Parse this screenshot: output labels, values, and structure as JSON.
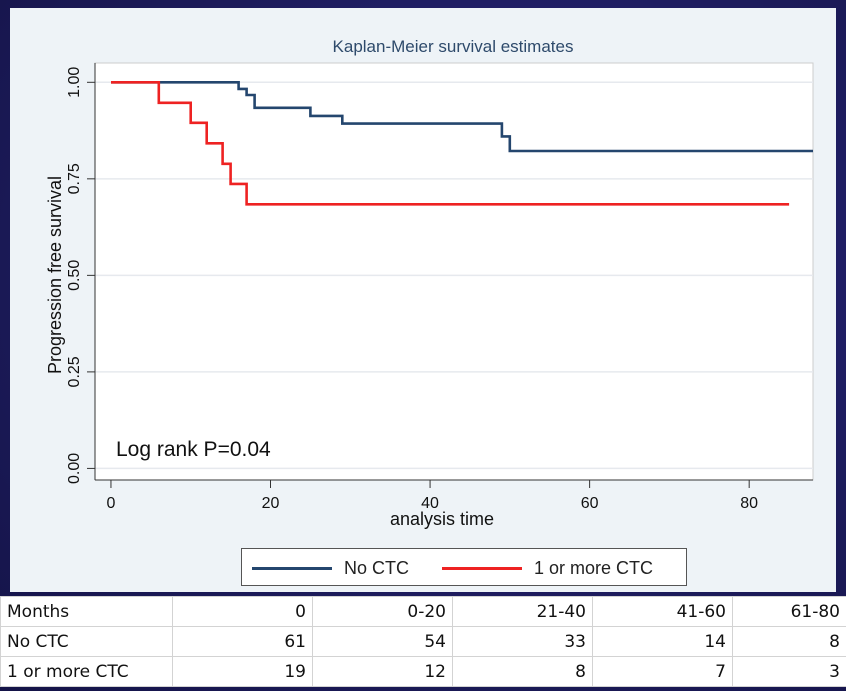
{
  "chart_data": {
    "type": "line",
    "title": "Kaplan-Meier survival estimates",
    "xlabel": "analysis time",
    "ylabel": "Progression free survival",
    "xlim": [
      -2,
      88
    ],
    "ylim": [
      -0.03,
      1.05
    ],
    "xticks": [
      0,
      20,
      40,
      60,
      80
    ],
    "yticks": [
      "0.00",
      "0.25",
      "0.50",
      "0.75",
      "1.00"
    ],
    "grid": true,
    "legend_position": "bottom",
    "annotation": "Log rank P=0.04",
    "series": [
      {
        "name": "No CTC",
        "color": "#24466e",
        "step_points": [
          [
            0,
            1.0
          ],
          [
            16,
            1.0
          ],
          [
            16,
            0.983
          ],
          [
            17,
            0.983
          ],
          [
            17,
            0.967
          ],
          [
            18,
            0.967
          ],
          [
            18,
            0.934
          ],
          [
            25,
            0.934
          ],
          [
            25,
            0.913
          ],
          [
            29,
            0.913
          ],
          [
            29,
            0.893
          ],
          [
            49,
            0.893
          ],
          [
            49,
            0.86
          ],
          [
            50,
            0.86
          ],
          [
            50,
            0.822
          ],
          [
            88,
            0.822
          ]
        ]
      },
      {
        "name": "1 or more CTC",
        "color": "#ee2222",
        "step_points": [
          [
            0,
            1.0
          ],
          [
            6,
            1.0
          ],
          [
            6,
            0.947
          ],
          [
            10,
            0.947
          ],
          [
            10,
            0.895
          ],
          [
            12,
            0.895
          ],
          [
            12,
            0.842
          ],
          [
            14,
            0.842
          ],
          [
            14,
            0.789
          ],
          [
            15,
            0.789
          ],
          [
            15,
            0.737
          ],
          [
            17,
            0.737
          ],
          [
            17,
            0.684
          ],
          [
            85,
            0.684
          ]
        ]
      }
    ]
  },
  "risk_table": {
    "header": [
      "Months",
      "0",
      "0-20",
      "21-40",
      "41-60",
      "61-80"
    ],
    "rows": [
      [
        "No CTC",
        "61",
        "54",
        "33",
        "14",
        "8"
      ],
      [
        "1 or more CTC",
        "19",
        "12",
        "8",
        "7",
        "3"
      ]
    ]
  }
}
